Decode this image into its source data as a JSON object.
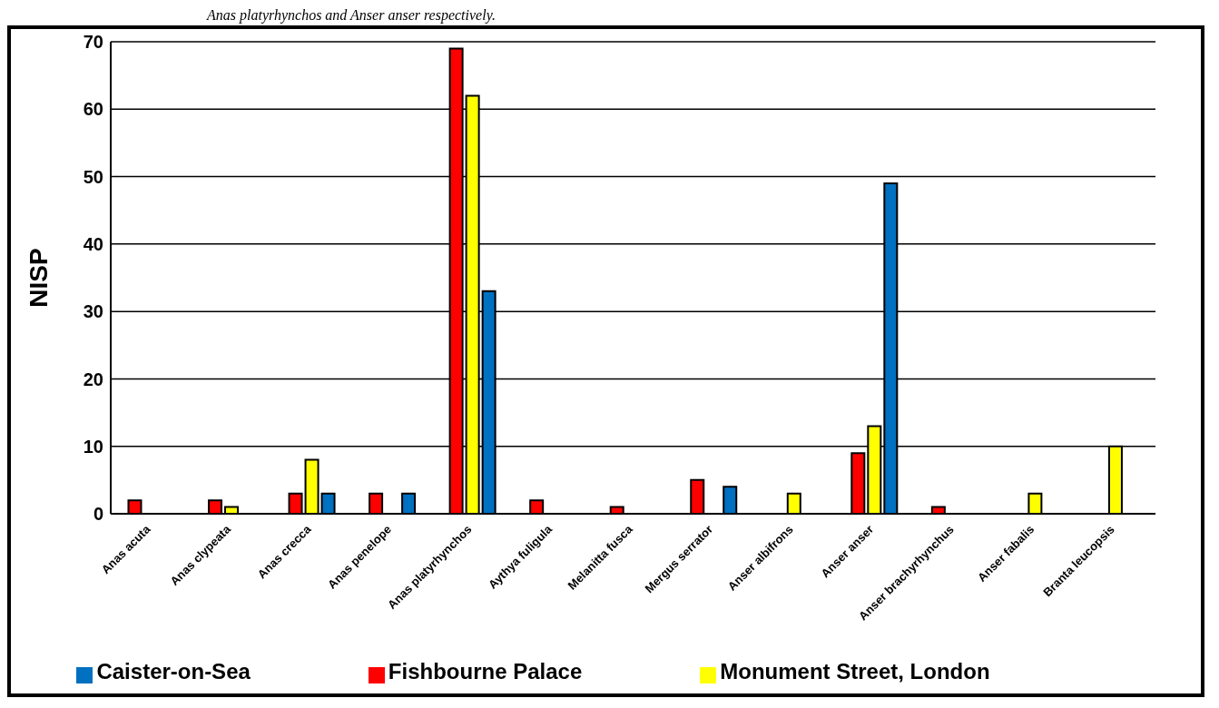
{
  "chart_data": {
    "type": "bar",
    "ylabel": "NISP",
    "annotations": [
      "Anas platyrhynchos and Anser anser respectively."
    ],
    "categories": [
      "Anas acuta",
      "Anas clypeata",
      "Anas crecca",
      "Anas penelope",
      "Anas platyrhynchos",
      "Aythya fuligula",
      "Melanitta fusca",
      "Mergus serrator",
      "Anser albifrons",
      "Anser anser",
      "Anser brachyrhynchus",
      "Anser fabalis",
      "Branta leucopsis"
    ],
    "series": [
      {
        "name": "Fishbourne Palace",
        "color": "#ff0000",
        "values": [
          2,
          2,
          3,
          3,
          69,
          2,
          1,
          5,
          null,
          9,
          1,
          null,
          null
        ]
      },
      {
        "name": "Monument Street, London",
        "color": "#ffff00",
        "values": [
          null,
          1,
          8,
          null,
          62,
          null,
          null,
          null,
          3,
          13,
          null,
          3,
          10
        ]
      },
      {
        "name": "Caister-on-Sea",
        "color": "#0070c0",
        "values": [
          null,
          null,
          3,
          3,
          33,
          null,
          null,
          4,
          null,
          49,
          null,
          null,
          null
        ]
      }
    ],
    "ylim": [
      0,
      70
    ],
    "yticks": [
      0,
      10,
      20,
      30,
      40,
      50,
      60,
      70
    ],
    "grid": "y",
    "legend": "bottom"
  }
}
